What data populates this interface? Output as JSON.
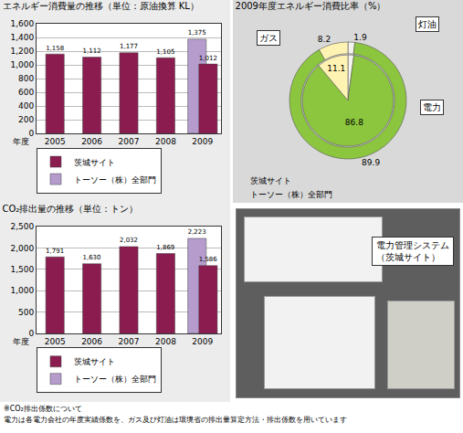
{
  "chart_data": [
    {
      "type": "bar",
      "title": "エネルギー消費量の推移（単位：原油換算 KL）",
      "xlabel": "年度",
      "categories": [
        "2005",
        "2006",
        "2007",
        "2008",
        "2009"
      ],
      "series": [
        {
          "name": "茨城サイト",
          "color": "#8b1c4f",
          "values": [
            1158,
            1112,
            1177,
            1105,
            1012
          ],
          "value_labels": [
            "1,158",
            "1,112",
            "1,177",
            "1,105",
            "1,012"
          ]
        },
        {
          "name": "トーソー（株）全部門",
          "color": "#b59ccd",
          "values": [
            null,
            null,
            null,
            null,
            1375
          ],
          "value_labels": [
            null,
            null,
            null,
            null,
            "1,375"
          ]
        }
      ],
      "ylim": [
        0,
        1600
      ],
      "yticks": [
        0,
        200,
        400,
        600,
        800,
        {
          "value": 1000,
          "label": "1,000"
        },
        {
          "value": 1200,
          "label": "1,200"
        },
        {
          "value": 1400,
          "label": "1,400"
        },
        {
          "value": 1600,
          "label": "1,600"
        }
      ],
      "grid": true,
      "data_labels": true,
      "legend": "bottom"
    },
    {
      "type": "pie",
      "title": "2009年度エネルギー消費比率（%）",
      "categories": [
        "灯油",
        "電力",
        "ガス"
      ],
      "colors": [
        "#f4f4ee",
        "#8cc63e",
        "#fff3b3"
      ],
      "series": [
        {
          "name": "茨城サイト",
          "values": [
            2.1,
            86.8,
            11.1
          ]
        },
        {
          "name": "トーソー（株）全部門",
          "values": [
            1.9,
            89.9,
            8.2
          ]
        }
      ],
      "data_labels": true
    },
    {
      "type": "bar",
      "title": "CO₂排出量の推移（単位：トン）",
      "xlabel": "年度",
      "categories": [
        "2005",
        "2006",
        "2007",
        "2008",
        "2009"
      ],
      "series": [
        {
          "name": "茨城サイト",
          "color": "#8b1c4f",
          "values": [
            1791,
            1630,
            2032,
            1869,
            1586
          ],
          "value_labels": [
            "1,791",
            "1,630",
            "2,032",
            "1,869",
            "1,586"
          ]
        },
        {
          "name": "トーソー（株）全部門",
          "color": "#b59ccd",
          "values": [
            null,
            null,
            null,
            null,
            2223
          ],
          "value_labels": [
            null,
            null,
            null,
            null,
            "2,223"
          ]
        }
      ],
      "ylim": [
        0,
        2500
      ],
      "yticks": [
        0,
        500,
        {
          "value": 1000,
          "label": "1,000"
        },
        {
          "value": 1500,
          "label": "1,500"
        },
        {
          "value": 2000,
          "label": "2,000"
        },
        {
          "value": 2500,
          "label": "2,500"
        }
      ],
      "grid": true,
      "data_labels": true,
      "legend": "bottom"
    }
  ],
  "photo": {
    "label": [
      "電力管理システム",
      "（茨城サイト）"
    ]
  },
  "footnote": [
    "※CO₂排出係数について",
    "電力は各電力会社の年度実績係数を、ガス及び灯油は環境省の排出量算定方法・排出係数を用いています"
  ]
}
